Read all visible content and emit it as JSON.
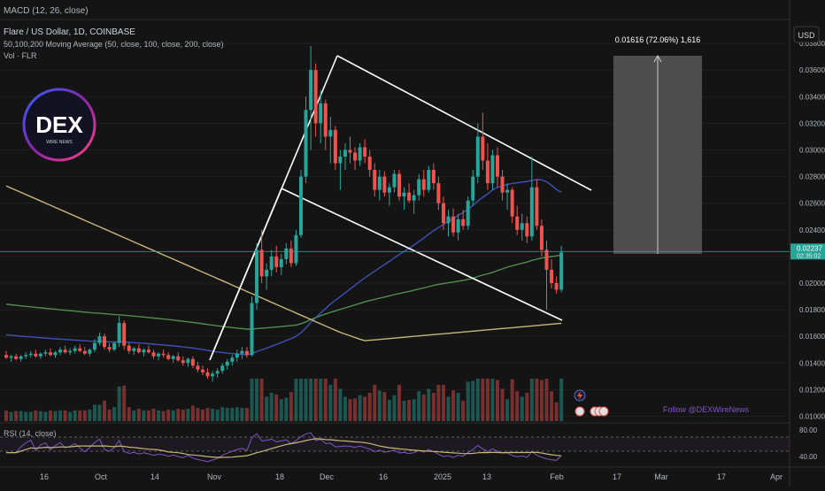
{
  "indicators": {
    "macd": "MACD (12, 26, close)",
    "title": "Flare / US Dollar, 1D, COINBASE",
    "ma": "50,100,200 Moving Average (50, close, 100, close, 200, close)",
    "vol": "Vol · FLR",
    "rsi": "RSI (14, close)"
  },
  "currency_button": "USD",
  "watermark": {
    "logo_text": "DEX",
    "logo_sub": "WIRE NEWS",
    "follow": "Follow @DEXWireNews"
  },
  "measure": {
    "label": "0.01616 (72.06%) 1,616"
  },
  "price_tag": {
    "price": "0.02237",
    "countdown": "02:35:02"
  },
  "colors": {
    "up": "#26a69a",
    "down": "#ef5350",
    "ma50": "#3f51b5",
    "ma100": "#4f8f4a",
    "ma200": "#c9b67a",
    "rsi": "#7e57c2",
    "rsi_ma": "#c9b67a",
    "measure": "#5c5c5c",
    "channel": "#ffffff"
  },
  "chart_data": {
    "type": "candlestick",
    "title": "Flare / US Dollar, 1D, COINBASE",
    "y_axis": {
      "ticks": [
        "0.03800",
        "0.03600",
        "0.03400",
        "0.03200",
        "0.03000",
        "0.02800",
        "0.02600",
        "0.02400",
        "0.02200",
        "0.02000",
        "0.01800",
        "0.01600",
        "0.01400",
        "0.01200",
        "0.01000"
      ],
      "range": [
        0.0095,
        0.0398
      ]
    },
    "x_axis": {
      "ticks": [
        "16",
        "Oct",
        "14",
        "Nov",
        "18",
        "Dec",
        "16",
        "2025",
        "13",
        "Feb",
        "17",
        "Mar",
        "17",
        "Apr"
      ]
    },
    "last_price": 0.02237,
    "ohlc": [
      [
        0.0146,
        0.0149,
        0.0143,
        0.0144
      ],
      [
        0.0144,
        0.0146,
        0.0141,
        0.0145
      ],
      [
        0.0145,
        0.0147,
        0.0142,
        0.0143
      ],
      [
        0.0143,
        0.0146,
        0.0141,
        0.0145
      ],
      [
        0.0145,
        0.0148,
        0.0143,
        0.0146
      ],
      [
        0.0146,
        0.0149,
        0.0144,
        0.0147
      ],
      [
        0.0147,
        0.015,
        0.0144,
        0.0145
      ],
      [
        0.0145,
        0.0148,
        0.0143,
        0.0147
      ],
      [
        0.0147,
        0.015,
        0.0145,
        0.0148
      ],
      [
        0.0148,
        0.0151,
        0.0145,
        0.0146
      ],
      [
        0.0146,
        0.0149,
        0.0144,
        0.0148
      ],
      [
        0.0148,
        0.0152,
        0.0146,
        0.015
      ],
      [
        0.015,
        0.0153,
        0.0147,
        0.0148
      ],
      [
        0.0148,
        0.0151,
        0.0146,
        0.0149
      ],
      [
        0.0149,
        0.0153,
        0.0147,
        0.0151
      ],
      [
        0.0151,
        0.0154,
        0.0148,
        0.0149
      ],
      [
        0.0149,
        0.0152,
        0.0146,
        0.0147
      ],
      [
        0.0147,
        0.0151,
        0.0145,
        0.015
      ],
      [
        0.015,
        0.0158,
        0.0148,
        0.0155
      ],
      [
        0.0155,
        0.0163,
        0.0153,
        0.016
      ],
      [
        0.016,
        0.0162,
        0.015,
        0.0152
      ],
      [
        0.0152,
        0.0155,
        0.0148,
        0.015
      ],
      [
        0.015,
        0.0156,
        0.0149,
        0.0155
      ],
      [
        0.0155,
        0.0175,
        0.0152,
        0.017
      ],
      [
        0.017,
        0.0172,
        0.015,
        0.0153
      ],
      [
        0.0153,
        0.0155,
        0.0147,
        0.0149
      ],
      [
        0.0149,
        0.0152,
        0.0146,
        0.0151
      ],
      [
        0.0151,
        0.0154,
        0.0147,
        0.0148
      ],
      [
        0.0148,
        0.0151,
        0.0145,
        0.015
      ],
      [
        0.015,
        0.0153,
        0.0147,
        0.0148
      ],
      [
        0.0148,
        0.015,
        0.0143,
        0.0145
      ],
      [
        0.0145,
        0.0148,
        0.0142,
        0.0147
      ],
      [
        0.0147,
        0.015,
        0.0144,
        0.0146
      ],
      [
        0.0146,
        0.0148,
        0.0142,
        0.0143
      ],
      [
        0.0143,
        0.0146,
        0.014,
        0.0145
      ],
      [
        0.0145,
        0.0148,
        0.0141,
        0.0142
      ],
      [
        0.0142,
        0.0145,
        0.0138,
        0.014
      ],
      [
        0.014,
        0.0144,
        0.0137,
        0.0143
      ],
      [
        0.0143,
        0.0145,
        0.0136,
        0.0138
      ],
      [
        0.0138,
        0.0141,
        0.0133,
        0.0135
      ],
      [
        0.0135,
        0.0138,
        0.0131,
        0.0133
      ],
      [
        0.0133,
        0.0136,
        0.0128,
        0.013
      ],
      [
        0.013,
        0.0134,
        0.0126,
        0.0132
      ],
      [
        0.0132,
        0.0136,
        0.0129,
        0.0134
      ],
      [
        0.0134,
        0.014,
        0.0132,
        0.0138
      ],
      [
        0.0138,
        0.0143,
        0.0135,
        0.0141
      ],
      [
        0.0141,
        0.0146,
        0.0138,
        0.0144
      ],
      [
        0.0144,
        0.015,
        0.0141,
        0.0147
      ],
      [
        0.0147,
        0.0152,
        0.0143,
        0.0149
      ],
      [
        0.0149,
        0.0152,
        0.0144,
        0.0146
      ],
      [
        0.0146,
        0.019,
        0.0145,
        0.0185
      ],
      [
        0.0185,
        0.023,
        0.018,
        0.0225
      ],
      [
        0.0225,
        0.024,
        0.02,
        0.0205
      ],
      [
        0.0205,
        0.0215,
        0.0195,
        0.021
      ],
      [
        0.021,
        0.0225,
        0.0205,
        0.022
      ],
      [
        0.022,
        0.0228,
        0.0208,
        0.0212
      ],
      [
        0.0212,
        0.0222,
        0.0206,
        0.0218
      ],
      [
        0.0218,
        0.023,
        0.0214,
        0.0226
      ],
      [
        0.0226,
        0.0232,
        0.0212,
        0.0215
      ],
      [
        0.0215,
        0.024,
        0.0213,
        0.0236
      ],
      [
        0.0236,
        0.0285,
        0.0234,
        0.028
      ],
      [
        0.028,
        0.034,
        0.0275,
        0.033
      ],
      [
        0.033,
        0.0378,
        0.03,
        0.036
      ],
      [
        0.036,
        0.0365,
        0.031,
        0.032
      ],
      [
        0.032,
        0.0345,
        0.0305,
        0.0335
      ],
      [
        0.0335,
        0.0338,
        0.03,
        0.031
      ],
      [
        0.031,
        0.0325,
        0.029,
        0.0315
      ],
      [
        0.0315,
        0.0318,
        0.0285,
        0.029
      ],
      [
        0.029,
        0.03,
        0.027,
        0.0295
      ],
      [
        0.0295,
        0.0305,
        0.0285,
        0.03
      ],
      [
        0.03,
        0.031,
        0.029,
        0.0298
      ],
      [
        0.0298,
        0.0302,
        0.0285,
        0.0292
      ],
      [
        0.0292,
        0.0305,
        0.0288,
        0.0302
      ],
      [
        0.0302,
        0.0308,
        0.029,
        0.0295
      ],
      [
        0.0295,
        0.03,
        0.028,
        0.0285
      ],
      [
        0.0285,
        0.029,
        0.0265,
        0.027
      ],
      [
        0.027,
        0.0285,
        0.0262,
        0.028
      ],
      [
        0.028,
        0.0284,
        0.0265,
        0.0268
      ],
      [
        0.0268,
        0.0275,
        0.0258,
        0.0272
      ],
      [
        0.0272,
        0.0285,
        0.0268,
        0.0282
      ],
      [
        0.0282,
        0.0285,
        0.0262,
        0.0265
      ],
      [
        0.0265,
        0.0272,
        0.0255,
        0.0268
      ],
      [
        0.0268,
        0.0275,
        0.026,
        0.0262
      ],
      [
        0.0262,
        0.027,
        0.0252,
        0.0266
      ],
      [
        0.0266,
        0.0282,
        0.0262,
        0.0278
      ],
      [
        0.0278,
        0.0285,
        0.0265,
        0.027
      ],
      [
        0.027,
        0.0288,
        0.0268,
        0.0285
      ],
      [
        0.0285,
        0.029,
        0.027,
        0.0275
      ],
      [
        0.0275,
        0.028,
        0.0255,
        0.026
      ],
      [
        0.026,
        0.0265,
        0.024,
        0.0245
      ],
      [
        0.0245,
        0.0255,
        0.0235,
        0.025
      ],
      [
        0.025,
        0.0256,
        0.0235,
        0.0238
      ],
      [
        0.0238,
        0.0252,
        0.0232,
        0.0248
      ],
      [
        0.0248,
        0.0255,
        0.024,
        0.0243
      ],
      [
        0.0243,
        0.0265,
        0.024,
        0.0262
      ],
      [
        0.0262,
        0.0285,
        0.0258,
        0.028
      ],
      [
        0.028,
        0.032,
        0.0275,
        0.031
      ],
      [
        0.031,
        0.0328,
        0.0285,
        0.0292
      ],
      [
        0.0292,
        0.0305,
        0.027,
        0.0275
      ],
      [
        0.0275,
        0.03,
        0.027,
        0.0296
      ],
      [
        0.0296,
        0.0302,
        0.0272,
        0.028
      ],
      [
        0.028,
        0.0285,
        0.0262,
        0.0268
      ],
      [
        0.0268,
        0.0275,
        0.0255,
        0.027
      ],
      [
        0.027,
        0.0272,
        0.0245,
        0.025
      ],
      [
        0.025,
        0.0258,
        0.0236,
        0.024
      ],
      [
        0.024,
        0.0252,
        0.0232,
        0.0245
      ],
      [
        0.0245,
        0.025,
        0.023,
        0.0235
      ],
      [
        0.0235,
        0.0295,
        0.0232,
        0.0272
      ],
      [
        0.0272,
        0.0278,
        0.024,
        0.0243
      ],
      [
        0.0243,
        0.0248,
        0.022,
        0.0225
      ],
      [
        0.0225,
        0.0232,
        0.018,
        0.021
      ],
      [
        0.021,
        0.0218,
        0.0196,
        0.02
      ],
      [
        0.02,
        0.0205,
        0.0192,
        0.0195
      ],
      [
        0.0195,
        0.0228,
        0.0193,
        0.0223
      ]
    ]
  }
}
